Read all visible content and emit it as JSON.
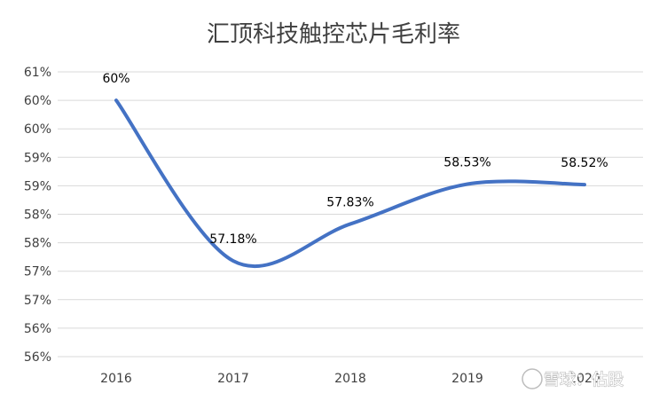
{
  "chart_data": {
    "type": "line",
    "title": "汇顶科技触控芯片毛利率",
    "categories": [
      "2016",
      "2017",
      "2018",
      "2019",
      "2020"
    ],
    "series": [
      {
        "values": [
          60.0,
          57.18,
          57.83,
          58.53,
          58.52
        ]
      }
    ],
    "data_labels": [
      "60%",
      "57.18%",
      "57.83%",
      "58.53%",
      "58.52%"
    ],
    "y_tick_labels": [
      "61%",
      "60%",
      "60%",
      "59%",
      "59%",
      "58%",
      "58%",
      "57%",
      "57%",
      "56%",
      "56%"
    ],
    "ylim": [
      55.5,
      60.5
    ],
    "xlabel": "",
    "ylabel": "",
    "grid": true,
    "legend": "none",
    "smooth": true,
    "line_color": "#4472C4"
  },
  "watermark": {
    "text": "雪球：估股"
  }
}
